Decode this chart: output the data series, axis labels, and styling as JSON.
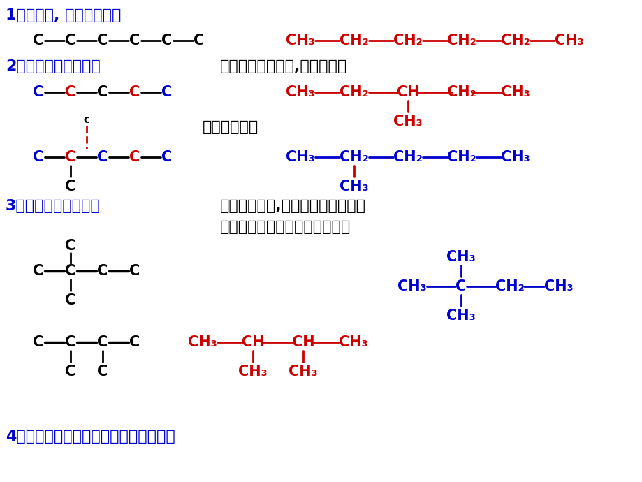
{
  "bg_color": "#ffffff",
  "blue": "#0000CD",
  "red": "#CC0000",
  "black": "#000000",
  "figsize": [
    9.2,
    6.9
  ],
  "dpi": 100,
  "texts": {
    "h1": "1、排主链, 主链由长到短",
    "h2": "2、减一个碳变支链：",
    "h2r": "支链位置由心到边,但不到端。",
    "dengxiao": "等效碳不重排",
    "h3": "3、减二个碳变支链：",
    "h3r1": "支链由整到散,位置由心到边但不到",
    "h3r2": "端；多支链时，排布对、邻、间",
    "h4": "4、最后用氢原子补足碳原子的四个价键"
  }
}
